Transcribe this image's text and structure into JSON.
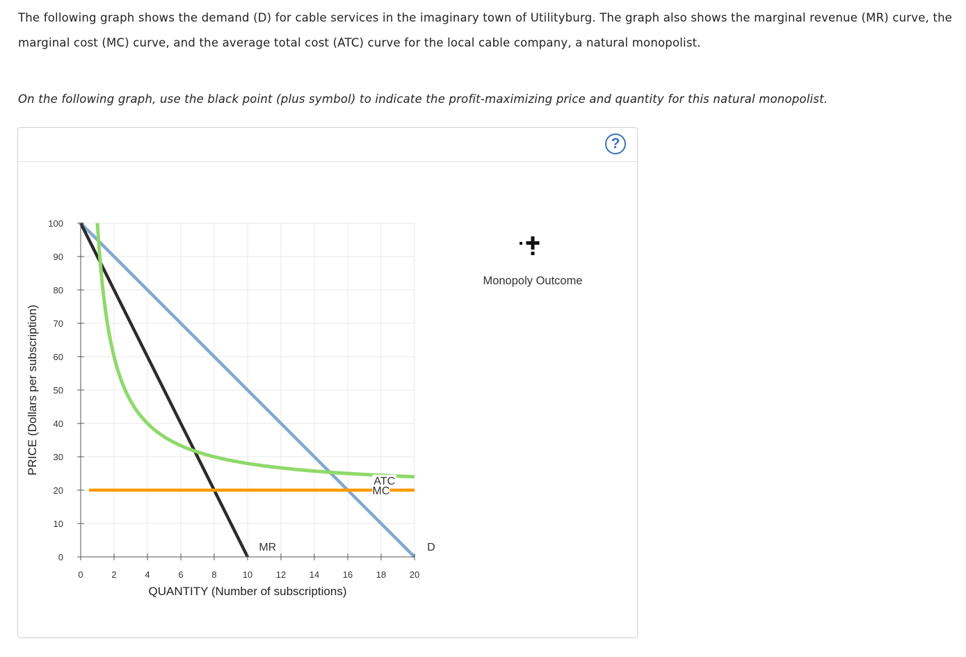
{
  "intro_text": "The following graph shows the demand (D) for cable services in the imaginary town of Utilityburg. The graph also shows the marginal revenue (MR) curve, the marginal cost (MC) curve, and the average total cost (ATC) curve for the local cable company, a natural monopolist.",
  "instruction_text": "On the following graph, use the black point (plus symbol) to indicate the profit-maximizing price and quantity for this natural monopolist.",
  "help_label": "?",
  "legend": {
    "icon": "plus-icon",
    "label": "Monopoly Outcome"
  },
  "colors": {
    "demand": "#82a8cf",
    "mr": "#2b2b2b",
    "atc": "#8fd96a",
    "mc": "#ff9a00",
    "grid": "#e8e8e8",
    "help": "#3b73b9"
  },
  "chart_data": {
    "type": "line",
    "xlabel": "QUANTITY (Number of subscriptions)",
    "ylabel": "PRICE (Dollars per subscription)",
    "xlim": [
      0,
      20
    ],
    "ylim": [
      0,
      100
    ],
    "x_ticks": [
      "0",
      "2",
      "4",
      "6",
      "8",
      "10",
      "12",
      "14",
      "16",
      "18",
      "20"
    ],
    "y_ticks": [
      "0",
      "10",
      "20",
      "30",
      "40",
      "50",
      "60",
      "70",
      "80",
      "90",
      "100"
    ],
    "grid": true,
    "series": [
      {
        "name": "D",
        "color": "#82a8cf",
        "points": [
          [
            0,
            100
          ],
          [
            20,
            0
          ]
        ]
      },
      {
        "name": "MR",
        "color": "#2b2b2b",
        "points": [
          [
            0,
            100
          ],
          [
            10,
            0
          ]
        ]
      },
      {
        "name": "MC",
        "color": "#ff9a00",
        "points": [
          [
            0.5,
            20
          ],
          [
            20,
            20
          ]
        ]
      },
      {
        "name": "ATC",
        "color": "#8fd96a",
        "points": [
          [
            1,
            100
          ],
          [
            1.25,
            84
          ],
          [
            1.5,
            73.33
          ],
          [
            2,
            60
          ],
          [
            3,
            46.67
          ],
          [
            4,
            40
          ],
          [
            5,
            36
          ],
          [
            6,
            33.33
          ],
          [
            7,
            31.43
          ],
          [
            8,
            30
          ],
          [
            10,
            28
          ],
          [
            12,
            26.67
          ],
          [
            14,
            25.71
          ],
          [
            16,
            25
          ],
          [
            18,
            24.44
          ],
          [
            20,
            24
          ]
        ]
      }
    ]
  }
}
